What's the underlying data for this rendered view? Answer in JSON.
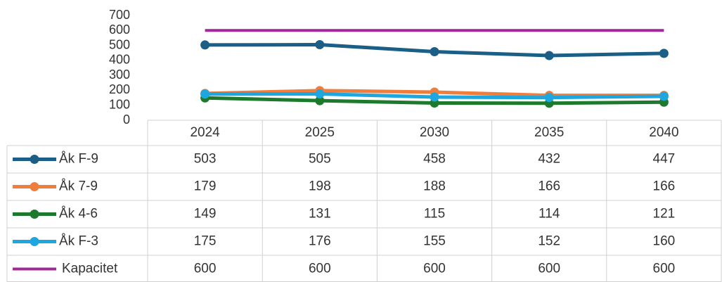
{
  "chart_data": {
    "type": "line",
    "categories": [
      "2024",
      "2025",
      "2030",
      "2035",
      "2040"
    ],
    "series": [
      {
        "name": "Åk F-9",
        "color": "#1b5f86",
        "values": [
          503,
          505,
          458,
          432,
          447
        ],
        "markers": true
      },
      {
        "name": "Åk 7-9",
        "color": "#ef7d3b",
        "values": [
          179,
          198,
          188,
          166,
          166
        ],
        "markers": true
      },
      {
        "name": "Åk 4-6",
        "color": "#1d7a2c",
        "values": [
          149,
          131,
          115,
          114,
          121
        ],
        "markers": true
      },
      {
        "name": "Åk F-3",
        "color": "#1ea6df",
        "values": [
          175,
          176,
          155,
          152,
          160
        ],
        "markers": true
      },
      {
        "name": "Kapacitet",
        "color": "#a1289a",
        "values": [
          600,
          600,
          600,
          600,
          600
        ],
        "markers": false
      }
    ],
    "ylim": [
      0,
      700
    ],
    "yticks": [
      0,
      100,
      200,
      300,
      400,
      500,
      600,
      700
    ],
    "data_table": true
  }
}
